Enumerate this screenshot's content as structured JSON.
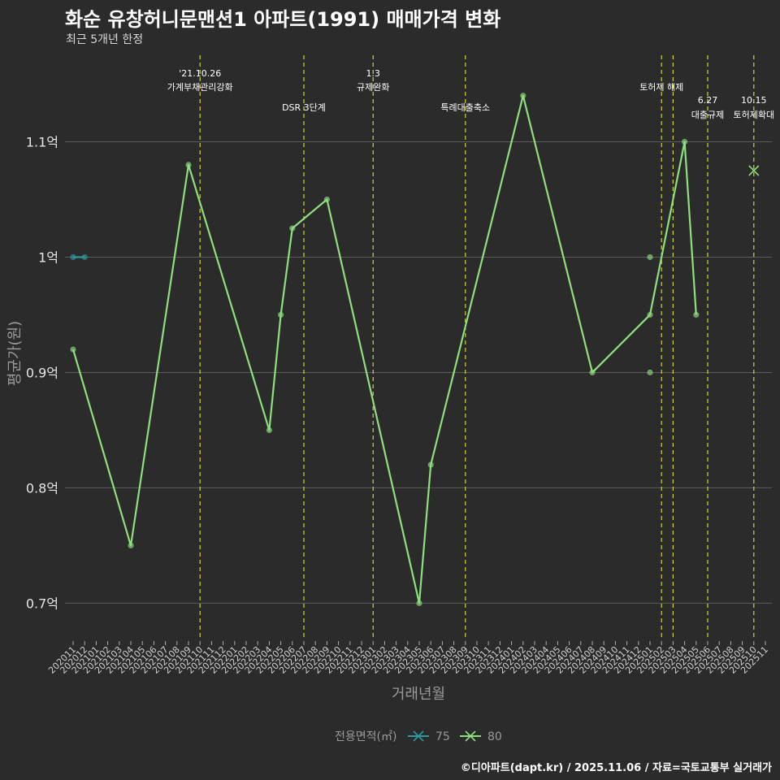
{
  "header": {
    "title": "화순 유창허니문맨션1 아파트(1991) 매매가격 변화",
    "subtitle": "최근 5개년 한정"
  },
  "caption": "©디아파트(dapt.kr) / 2025.11.06 / 자료=국토교통부 실거래가",
  "chart_data": {
    "type": "line",
    "xlabel": "거래년월",
    "ylabel": "평균가(원)",
    "ylim": [
      0.67,
      1.175
    ],
    "yticks": [
      {
        "value": 0.7,
        "label": "0.7억"
      },
      {
        "value": 0.8,
        "label": "0.8억"
      },
      {
        "value": 0.9,
        "label": "0.9억"
      },
      {
        "value": 1.0,
        "label": "1억"
      },
      {
        "value": 1.1,
        "label": "1.1억"
      }
    ],
    "categories": [
      "202011",
      "202012",
      "202101",
      "202102",
      "202103",
      "202104",
      "202105",
      "202106",
      "202107",
      "202108",
      "202109",
      "202110",
      "202111",
      "202112",
      "202201",
      "202202",
      "202203",
      "202204",
      "202205",
      "202206",
      "202207",
      "202208",
      "202209",
      "202210",
      "202211",
      "202212",
      "202301",
      "202302",
      "202303",
      "202304",
      "202305",
      "202306",
      "202307",
      "202308",
      "202309",
      "202310",
      "202311",
      "202312",
      "202401",
      "202402",
      "202403",
      "202404",
      "202405",
      "202406",
      "202407",
      "202408",
      "202409",
      "202410",
      "202411",
      "202412",
      "202501",
      "202502",
      "202503",
      "202504",
      "202505",
      "202506",
      "202507",
      "202508",
      "202509",
      "202510",
      "202511"
    ],
    "legend": {
      "title": "전용면적(㎡)",
      "position": "bottom"
    },
    "series": [
      {
        "name": "75",
        "color": "#2e9a9a",
        "points": [
          {
            "x": "202011",
            "y": 1.0
          },
          {
            "x": "202012",
            "y": 1.0
          }
        ]
      },
      {
        "name": "80",
        "color": "#8ee07c",
        "points": [
          {
            "x": "202011",
            "y": 0.92
          },
          {
            "x": "202104",
            "y": 0.75
          },
          {
            "x": "202109",
            "y": 1.08
          },
          {
            "x": "202204",
            "y": 0.85
          },
          {
            "x": "202205",
            "y": 0.95
          },
          {
            "x": "202206",
            "y": 1.025
          },
          {
            "x": "202209",
            "y": 1.05
          },
          {
            "x": "202305",
            "y": 0.7
          },
          {
            "x": "202306",
            "y": 0.82
          },
          {
            "x": "202402",
            "y": 1.14
          },
          {
            "x": "202408",
            "y": 0.9
          },
          {
            "x": "202501",
            "y": 0.95
          },
          {
            "x": "202504",
            "y": 1.1
          },
          {
            "x": "202505",
            "y": 0.95
          }
        ],
        "extra_points": [
          {
            "x": "202501",
            "y": 1.0
          },
          {
            "x": "202501",
            "y": 0.9
          }
        ],
        "cross_marks": [
          {
            "x": "202510",
            "y": 1.075
          }
        ]
      }
    ],
    "events": [
      {
        "x": "202110",
        "date": "'21.10.26",
        "label": "가계부채관리강화",
        "row": 1
      },
      {
        "x": "202207",
        "date": "",
        "label": "DSR 3단계",
        "row": 2
      },
      {
        "x": "202301",
        "date": "1.3",
        "label": "규제완화",
        "row": 1
      },
      {
        "x": "202309",
        "date": "",
        "label": "특례대출축소",
        "row": 2
      },
      {
        "x": "202502",
        "date": "",
        "label": "토허제 해제",
        "row": 1
      },
      {
        "x": "202503",
        "date": "",
        "label": "",
        "row": 1
      },
      {
        "x": "202506",
        "date": "6.27",
        "label": "대출규제",
        "row": 3
      },
      {
        "x": "202510",
        "date": "10.15",
        "label": "토허제확대",
        "row": 3
      }
    ]
  }
}
